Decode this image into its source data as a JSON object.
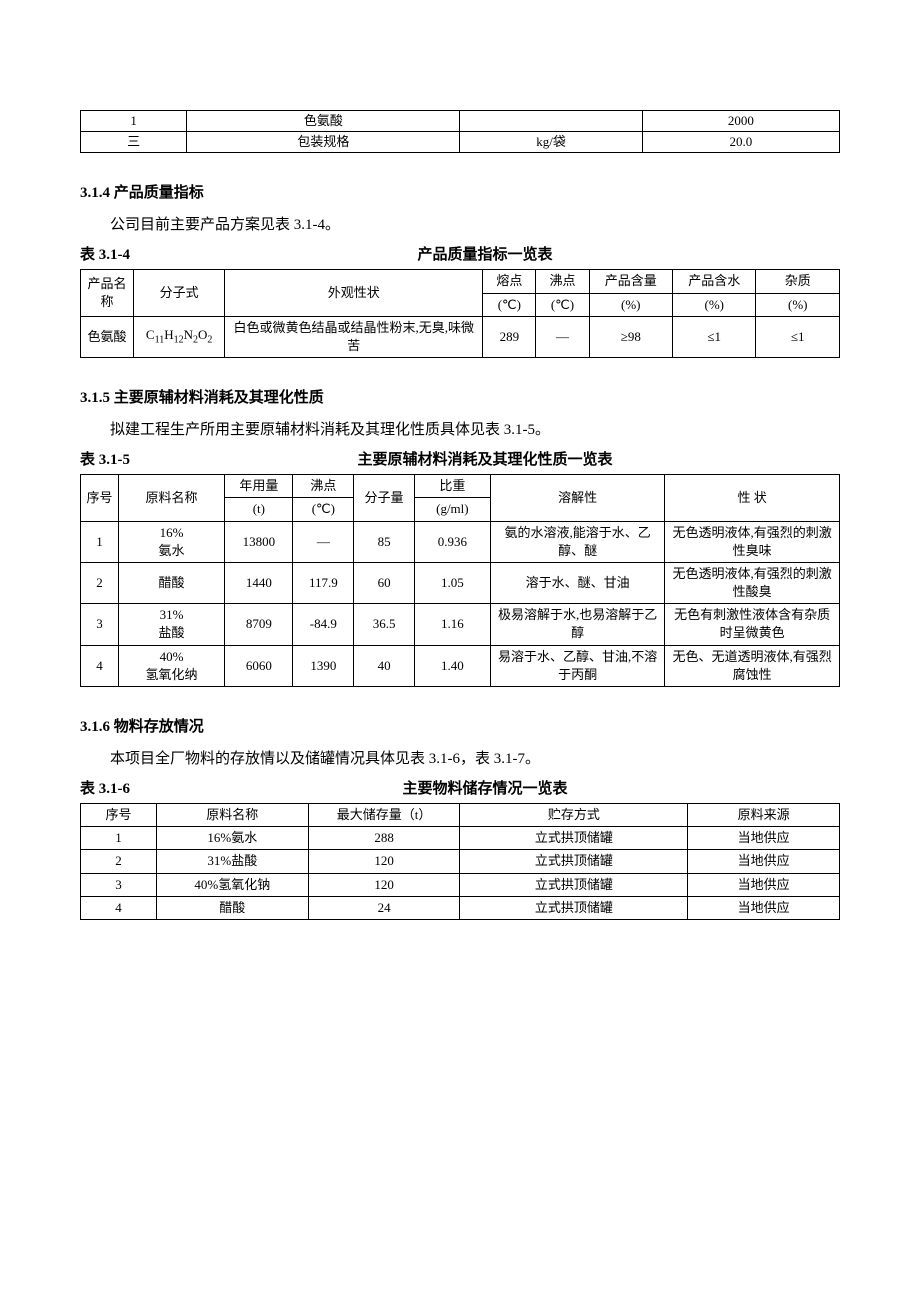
{
  "topTable": {
    "rows": [
      [
        "1",
        "色氨酸",
        "",
        "2000"
      ],
      [
        "三",
        "包装规格",
        "kg/袋",
        "20.0"
      ]
    ],
    "colWidths": [
      "14%",
      "36%",
      "24%",
      "26%"
    ]
  },
  "s314": {
    "heading": "3.1.4  产品质量指标",
    "text": "公司目前主要产品方案见表 3.1-4。",
    "captionLabel": "表 3.1-4",
    "captionTitle": "产品质量指标一览表",
    "header1": [
      "产品名称",
      "分子式",
      "外观性状",
      "熔点",
      "沸点",
      "产品含量",
      "产品含水",
      "杂质"
    ],
    "header2": [
      "(℃)",
      "(℃)",
      "(%)",
      "(%)",
      "(%)"
    ],
    "row": {
      "name": "色氨酸",
      "formula_html": "C<span class=\"sub\">11</span>H<span class=\"sub\">12</span>N<span class=\"sub\">2</span>O<span class=\"sub\">2</span>",
      "appearance": "白色或微黄色结晶或结晶性粉末,无臭,味微苦",
      "mp": "289",
      "bp": "—",
      "content": "≥98",
      "water": "≤1",
      "impurity": "≤1"
    },
    "colWidths": [
      "7%",
      "12%",
      "34%",
      "7%",
      "7%",
      "11%",
      "11%",
      "11%"
    ]
  },
  "s315": {
    "heading": "3.1.5  主要原辅材料消耗及其理化性质",
    "text": "拟建工程生产所用主要原辅材料消耗及其理化性质具体见表 3.1-5。",
    "captionLabel": "表 3.1-5",
    "captionTitle": "主要原辅材料消耗及其理化性质一览表",
    "header1": [
      "序号",
      "原料名称",
      "年用量",
      "沸点",
      "分子量",
      "比重",
      "溶解性",
      "性  状"
    ],
    "header2": [
      "(t)",
      "(℃)",
      "",
      "(g/ml)"
    ],
    "rows": [
      {
        "no": "1",
        "name": "16%\n氨水",
        "annual": "13800",
        "bp": "—",
        "mw": "85",
        "sg": "0.936",
        "sol": "氨的水溶液,能溶于水、乙醇、醚",
        "prop": "无色透明液体,有强烈的刺激性臭味"
      },
      {
        "no": "2",
        "name": "醋酸",
        "annual": "1440",
        "bp": "117.9",
        "mw": "60",
        "sg": "1.05",
        "sol": "溶于水、醚、甘油",
        "prop": "无色透明液体,有强烈的刺激性酸臭"
      },
      {
        "no": "3",
        "name": "31%\n盐酸",
        "annual": "8709",
        "bp": "-84.9",
        "mw": "36.5",
        "sg": "1.16",
        "sol": "极易溶解于水,也易溶解于乙醇",
        "prop": "无色有刺激性液体含有杂质时呈微黄色"
      },
      {
        "no": "4",
        "name": "40%\n氢氧化纳",
        "annual": "6060",
        "bp": "1390",
        "mw": "40",
        "sg": "1.40",
        "sol": "易溶于水、乙醇、甘油,不溶于丙酮",
        "prop": "无色、无道透明液体,有强烈腐蚀性"
      }
    ],
    "colWidths": [
      "5%",
      "14%",
      "9%",
      "8%",
      "8%",
      "10%",
      "23%",
      "23%"
    ]
  },
  "s316": {
    "heading": "3.1.6  物料存放情况",
    "text": "本项目全厂物料的存放情以及储罐情况具体见表 3.1-6，表 3.1-7。",
    "captionLabel": "表 3.1-6",
    "captionTitle": "主要物料储存情况一览表",
    "header": [
      "序号",
      "原料名称",
      "最大储存量（t）",
      "贮存方式",
      "原料来源"
    ],
    "rows": [
      [
        "1",
        "16%氨水",
        "288",
        "立式拱顶储罐",
        "当地供应"
      ],
      [
        "2",
        "31%盐酸",
        "120",
        "立式拱顶储罐",
        "当地供应"
      ],
      [
        "3",
        "40%氢氧化钠",
        "120",
        "立式拱顶储罐",
        "当地供应"
      ],
      [
        "4",
        "醋酸",
        "24",
        "立式拱顶储罐",
        "当地供应"
      ]
    ],
    "colWidths": [
      "10%",
      "20%",
      "20%",
      "30%",
      "20%"
    ]
  }
}
